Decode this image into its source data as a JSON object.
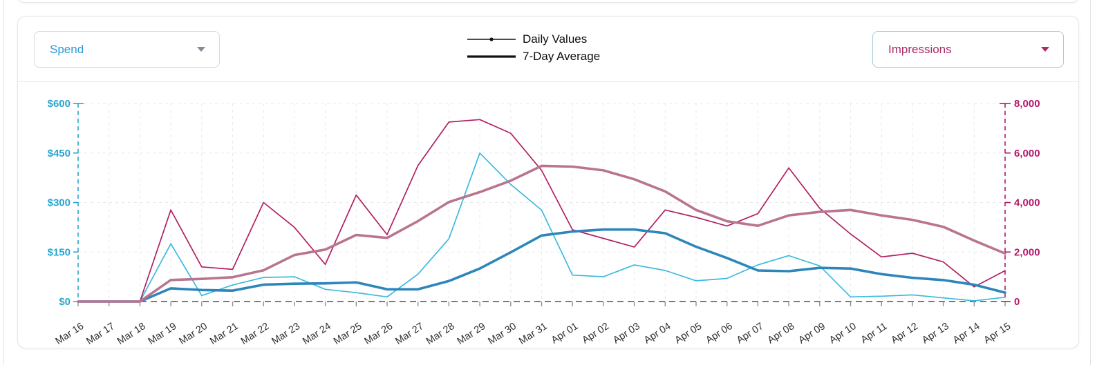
{
  "header": {
    "left_dropdown": {
      "value": "Spend",
      "text_color": "#2b9cd8"
    },
    "right_dropdown": {
      "value": "Impressions",
      "text_color": "#ab2a68"
    },
    "legend": [
      {
        "label": "Daily Values",
        "marker": "thin-line-with-dot"
      },
      {
        "label": "7-Day Average",
        "marker": "thick-line"
      }
    ]
  },
  "chart_data": {
    "type": "line",
    "grid": true,
    "x": [
      "Mar 16",
      "Mar 17",
      "Mar 18",
      "Mar 19",
      "Mar 20",
      "Mar 21",
      "Mar 22",
      "Mar 23",
      "Mar 24",
      "Mar 25",
      "Mar 26",
      "Mar 27",
      "Mar 28",
      "Mar 29",
      "Mar 30",
      "Mar 31",
      "Apr 01",
      "Apr 02",
      "Apr 03",
      "Apr 04",
      "Apr 05",
      "Apr 06",
      "Apr 07",
      "Apr 08",
      "Apr 09",
      "Apr 10",
      "Apr 11",
      "Apr 12",
      "Apr 13",
      "Apr 14",
      "Apr 15"
    ],
    "left_axis": {
      "title": "Spend",
      "min": 0,
      "max": 600,
      "ticks": [
        {
          "label": "$0",
          "value": 0
        },
        {
          "label": "$150",
          "value": 150
        },
        {
          "label": "$300",
          "value": 300
        },
        {
          "label": "$450",
          "value": 450
        },
        {
          "label": "$600",
          "value": 600
        }
      ],
      "color": "#29a5ce"
    },
    "right_axis": {
      "title": "Impressions",
      "min": 0,
      "max": 8000,
      "ticks": [
        {
          "label": "0",
          "value": 0
        },
        {
          "label": "2,000",
          "value": 2000
        },
        {
          "label": "4,000",
          "value": 4000
        },
        {
          "label": "6,000",
          "value": 6000
        },
        {
          "label": "8,000",
          "value": 8000
        }
      ],
      "color": "#b5156b"
    },
    "series": [
      {
        "name": "Spend (Daily Values)",
        "axis": "left",
        "style": "thin",
        "color": "#3bbadf",
        "values": [
          0,
          0,
          0,
          175,
          18,
          50,
          73,
          75,
          37,
          27,
          14,
          83,
          190,
          450,
          355,
          277,
          80,
          75,
          111,
          94,
          63,
          70,
          111,
          139,
          108,
          14,
          16,
          20,
          11,
          2,
          13
        ]
      },
      {
        "name": "Spend (7-Day Average)",
        "axis": "left",
        "style": "thick",
        "color": "#2d86ba",
        "values": [
          0,
          0,
          0,
          40,
          35,
          33,
          51,
          54,
          55,
          58,
          37,
          37,
          62,
          100,
          149,
          200,
          212,
          218,
          218,
          207,
          166,
          132,
          94,
          92,
          102,
          100,
          83,
          72,
          65,
          51,
          27
        ]
      },
      {
        "name": "Impressions (Daily Values)",
        "axis": "right",
        "style": "thin",
        "color": "#b21f63",
        "values": [
          0,
          0,
          0,
          3700,
          1400,
          1300,
          4000,
          3000,
          1500,
          4300,
          2700,
          5500,
          7250,
          7350,
          6800,
          5300,
          2900,
          2550,
          2200,
          3700,
          3400,
          3050,
          3550,
          5400,
          3770,
          2730,
          1800,
          1950,
          1600,
          590,
          1250
        ]
      },
      {
        "name": "Impressions (7-Day Average)",
        "axis": "right",
        "style": "thick",
        "color": "#b9748f",
        "values": [
          0,
          0,
          0,
          870,
          915,
          980,
          1260,
          1880,
          2100,
          2690,
          2570,
          3250,
          4020,
          4420,
          4880,
          5480,
          5450,
          5300,
          4940,
          4450,
          3700,
          3245,
          3060,
          3480,
          3620,
          3700,
          3480,
          3300,
          3020,
          2460,
          1940
        ]
      }
    ],
    "x_label_color": "#2e2e2e",
    "bottom_axis_color": "#4d4d4d",
    "grid_color": "#e8e8eb"
  }
}
